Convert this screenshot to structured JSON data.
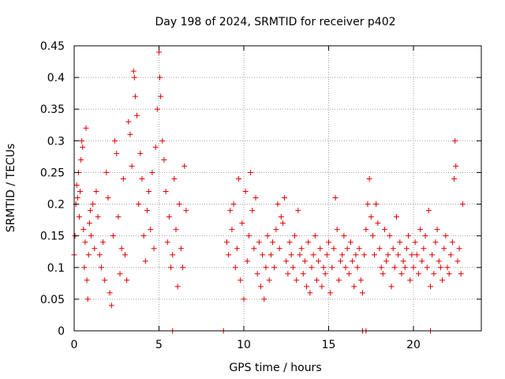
{
  "chart_data": {
    "type": "scatter",
    "title": "Day 198 of 2024, SRMTID for receiver p402",
    "xlabel": "GPS time / hours",
    "ylabel": "SRMTID / TECUs",
    "xlim": [
      0,
      24
    ],
    "ylim": [
      0,
      0.45
    ],
    "grid": true,
    "marker": "plus",
    "color": "#e00000",
    "x_ticks": [
      0,
      5,
      10,
      15,
      20
    ],
    "x_tick_labels": [
      "0",
      "5",
      "10",
      "15",
      "20"
    ],
    "y_ticks": [
      0,
      0.05,
      0.1,
      0.15,
      0.2,
      0.25,
      0.3,
      0.35,
      0.4,
      0.45
    ],
    "y_tick_labels": [
      "0",
      "0.05",
      "0.1",
      "0.15",
      "0.2",
      "0.25",
      "0.3",
      "0.35",
      "0.4",
      "0.45"
    ],
    "series": [
      {
        "name": "SRMTID",
        "points": [
          [
            0.0,
            0.12
          ],
          [
            0.05,
            0.15
          ],
          [
            0.1,
            0.2
          ],
          [
            0.15,
            0.23
          ],
          [
            0.2,
            0.21
          ],
          [
            0.25,
            0.25
          ],
          [
            0.3,
            0.18
          ],
          [
            0.35,
            0.22
          ],
          [
            0.4,
            0.27
          ],
          [
            0.45,
            0.3
          ],
          [
            0.5,
            0.29
          ],
          [
            0.55,
            0.16
          ],
          [
            0.6,
            0.1
          ],
          [
            0.65,
            0.14
          ],
          [
            0.7,
            0.32
          ],
          [
            0.75,
            0.08
          ],
          [
            0.8,
            0.05
          ],
          [
            0.85,
            0.12
          ],
          [
            0.9,
            0.17
          ],
          [
            0.95,
            0.19
          ],
          [
            1.0,
            0.15
          ],
          [
            1.1,
            0.2
          ],
          [
            1.2,
            0.13
          ],
          [
            1.3,
            0.22
          ],
          [
            1.4,
            0.18
          ],
          [
            1.5,
            0.12
          ],
          [
            1.6,
            0.1
          ],
          [
            1.7,
            0.14
          ],
          [
            1.8,
            0.08
          ],
          [
            1.9,
            0.25
          ],
          [
            2.0,
            0.21
          ],
          [
            2.1,
            0.06
          ],
          [
            2.2,
            0.04
          ],
          [
            2.3,
            0.15
          ],
          [
            2.4,
            0.3
          ],
          [
            2.5,
            0.28
          ],
          [
            2.6,
            0.18
          ],
          [
            2.7,
            0.09
          ],
          [
            2.8,
            0.13
          ],
          [
            2.9,
            0.24
          ],
          [
            3.0,
            0.12
          ],
          [
            3.1,
            0.08
          ],
          [
            3.2,
            0.33
          ],
          [
            3.3,
            0.31
          ],
          [
            3.4,
            0.26
          ],
          [
            3.5,
            0.41
          ],
          [
            3.55,
            0.4
          ],
          [
            3.6,
            0.37
          ],
          [
            3.7,
            0.34
          ],
          [
            3.8,
            0.2
          ],
          [
            3.9,
            0.28
          ],
          [
            4.0,
            0.24
          ],
          [
            4.1,
            0.15
          ],
          [
            4.2,
            0.11
          ],
          [
            4.3,
            0.19
          ],
          [
            4.4,
            0.22
          ],
          [
            4.5,
            0.16
          ],
          [
            4.6,
            0.25
          ],
          [
            4.7,
            0.13
          ],
          [
            4.8,
            0.29
          ],
          [
            4.9,
            0.35
          ],
          [
            5.0,
            0.44
          ],
          [
            5.05,
            0.4
          ],
          [
            5.1,
            0.37
          ],
          [
            5.2,
            0.3
          ],
          [
            5.3,
            0.27
          ],
          [
            5.4,
            0.22
          ],
          [
            5.5,
            0.14
          ],
          [
            5.6,
            0.18
          ],
          [
            5.7,
            0.1
          ],
          [
            5.8,
            0.12
          ],
          [
            5.9,
            0.24
          ],
          [
            6.0,
            0.16
          ],
          [
            6.1,
            0.07
          ],
          [
            6.2,
            0.2
          ],
          [
            6.3,
            0.13
          ],
          [
            6.4,
            0.1
          ],
          [
            6.5,
            0.26
          ],
          [
            6.6,
            0.19
          ],
          [
            9.0,
            0.14
          ],
          [
            9.1,
            0.12
          ],
          [
            9.2,
            0.19
          ],
          [
            9.3,
            0.16
          ],
          [
            9.4,
            0.2
          ],
          [
            9.5,
            0.1
          ],
          [
            9.6,
            0.13
          ],
          [
            9.7,
            0.24
          ],
          [
            9.8,
            0.08
          ],
          [
            9.9,
            0.17
          ],
          [
            10.0,
            0.05
          ],
          [
            10.1,
            0.22
          ],
          [
            10.2,
            0.11
          ],
          [
            10.3,
            0.15
          ],
          [
            10.4,
            0.25
          ],
          [
            10.5,
            0.19
          ],
          [
            10.6,
            0.13
          ],
          [
            10.7,
            0.21
          ],
          [
            10.8,
            0.09
          ],
          [
            10.9,
            0.14
          ],
          [
            11.0,
            0.07
          ],
          [
            11.1,
            0.12
          ],
          [
            11.2,
            0.05
          ],
          [
            11.3,
            0.1
          ],
          [
            11.4,
            0.15
          ],
          [
            11.5,
            0.08
          ],
          [
            11.6,
            0.12
          ],
          [
            11.7,
            0.14
          ],
          [
            11.8,
            0.1
          ],
          [
            11.9,
            0.16
          ],
          [
            12.0,
            0.2
          ],
          [
            12.1,
            0.13
          ],
          [
            12.2,
            0.18
          ],
          [
            12.3,
            0.17
          ],
          [
            12.4,
            0.21
          ],
          [
            12.5,
            0.11
          ],
          [
            12.6,
            0.09
          ],
          [
            12.7,
            0.14
          ],
          [
            12.8,
            0.12
          ],
          [
            12.9,
            0.1
          ],
          [
            13.0,
            0.15
          ],
          [
            13.1,
            0.08
          ],
          [
            13.2,
            0.19
          ],
          [
            13.3,
            0.12
          ],
          [
            13.4,
            0.13
          ],
          [
            13.5,
            0.09
          ],
          [
            13.6,
            0.11
          ],
          [
            13.7,
            0.07
          ],
          [
            13.8,
            0.14
          ],
          [
            13.9,
            0.06
          ],
          [
            14.0,
            0.1
          ],
          [
            14.1,
            0.12
          ],
          [
            14.2,
            0.15
          ],
          [
            14.3,
            0.08
          ],
          [
            14.4,
            0.11
          ],
          [
            14.5,
            0.13
          ],
          [
            14.6,
            0.07
          ],
          [
            14.7,
            0.1
          ],
          [
            14.8,
            0.09
          ],
          [
            14.9,
            0.12
          ],
          [
            15.0,
            0.14
          ],
          [
            15.1,
            0.06
          ],
          [
            15.2,
            0.1
          ],
          [
            15.3,
            0.13
          ],
          [
            15.4,
            0.21
          ],
          [
            15.5,
            0.16
          ],
          [
            15.6,
            0.08
          ],
          [
            15.7,
            0.11
          ],
          [
            15.8,
            0.12
          ],
          [
            15.9,
            0.15
          ],
          [
            16.0,
            0.1
          ],
          [
            16.1,
            0.13
          ],
          [
            16.2,
            0.09
          ],
          [
            16.3,
            0.14
          ],
          [
            16.4,
            0.11
          ],
          [
            16.5,
            0.07
          ],
          [
            16.6,
            0.12
          ],
          [
            16.7,
            0.1
          ],
          [
            16.8,
            0.13
          ],
          [
            16.9,
            0.08
          ],
          [
            17.0,
            0.06
          ],
          [
            17.1,
            0.12
          ],
          [
            17.2,
            0.16
          ],
          [
            17.3,
            0.2
          ],
          [
            17.4,
            0.24
          ],
          [
            17.5,
            0.18
          ],
          [
            17.6,
            0.15
          ],
          [
            17.7,
            0.12
          ],
          [
            17.8,
            0.2
          ],
          [
            17.9,
            0.17
          ],
          [
            18.0,
            0.13
          ],
          [
            18.1,
            0.1
          ],
          [
            18.2,
            0.09
          ],
          [
            18.3,
            0.16
          ],
          [
            18.4,
            0.11
          ],
          [
            18.5,
            0.12
          ],
          [
            18.6,
            0.15
          ],
          [
            18.7,
            0.07
          ],
          [
            18.8,
            0.13
          ],
          [
            18.9,
            0.1
          ],
          [
            19.0,
            0.18
          ],
          [
            19.1,
            0.12
          ],
          [
            19.2,
            0.14
          ],
          [
            19.3,
            0.09
          ],
          [
            19.4,
            0.11
          ],
          [
            19.5,
            0.1
          ],
          [
            19.6,
            0.13
          ],
          [
            19.7,
            0.15
          ],
          [
            19.8,
            0.08
          ],
          [
            19.9,
            0.12
          ],
          [
            20.0,
            0.1
          ],
          [
            20.1,
            0.14
          ],
          [
            20.2,
            0.12
          ],
          [
            20.3,
            0.09
          ],
          [
            20.4,
            0.16
          ],
          [
            20.5,
            0.11
          ],
          [
            20.6,
            0.13
          ],
          [
            20.7,
            0.15
          ],
          [
            20.8,
            0.1
          ],
          [
            20.9,
            0.19
          ],
          [
            21.0,
            0.07
          ],
          [
            21.1,
            0.12
          ],
          [
            21.2,
            0.09
          ],
          [
            21.3,
            0.14
          ],
          [
            21.4,
            0.16
          ],
          [
            21.5,
            0.11
          ],
          [
            21.6,
            0.1
          ],
          [
            21.7,
            0.08
          ],
          [
            21.8,
            0.13
          ],
          [
            21.9,
            0.15
          ],
          [
            22.0,
            0.1
          ],
          [
            22.1,
            0.09
          ],
          [
            22.2,
            0.12
          ],
          [
            22.3,
            0.14
          ],
          [
            22.4,
            0.24
          ],
          [
            22.45,
            0.3
          ],
          [
            22.5,
            0.26
          ],
          [
            22.6,
            0.11
          ],
          [
            22.7,
            0.13
          ],
          [
            22.8,
            0.09
          ],
          [
            22.9,
            0.2
          ],
          [
            5.8,
            0.0
          ],
          [
            8.8,
            0.0
          ],
          [
            17.0,
            0.0
          ],
          [
            17.2,
            0.0
          ],
          [
            21.0,
            0.0
          ]
        ]
      }
    ]
  }
}
